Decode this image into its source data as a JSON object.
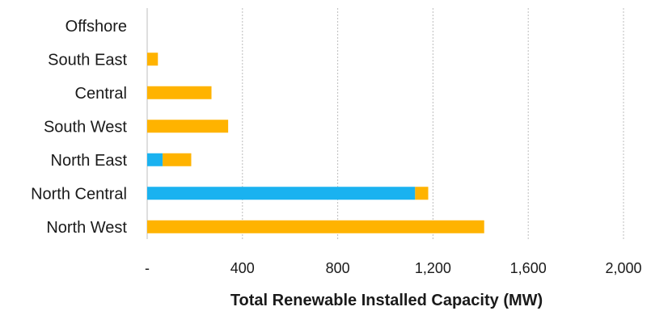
{
  "chart_data": {
    "type": "bar",
    "orientation": "horizontal",
    "stacked": true,
    "categories": [
      "Offshore",
      "South East",
      "Central",
      "South West",
      "North East",
      "North Central",
      "North West"
    ],
    "series": [
      {
        "key": "blue",
        "color": "#1ab2f0",
        "values": [
          0,
          0,
          0,
          0,
          65,
          1125,
          0
        ]
      },
      {
        "key": "orange",
        "color": "#ffb300",
        "values": [
          0,
          45,
          270,
          340,
          120,
          55,
          1415
        ]
      }
    ],
    "xaxis": {
      "ticks": [
        0,
        400,
        800,
        1200,
        1600,
        2000
      ],
      "tick_labels": [
        "-",
        "400",
        "800",
        "1,200",
        "1,600",
        "2,000"
      ],
      "range": [
        0,
        2000
      ]
    },
    "xlabel": "Total Renewable Installed Capacity (MW)",
    "grid": "vertical-dashed",
    "legend": "none"
  }
}
